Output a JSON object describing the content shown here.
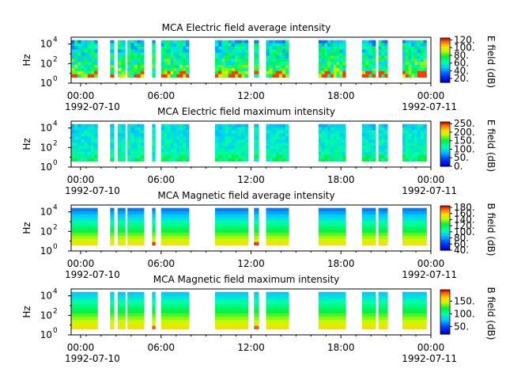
{
  "chart_data": [
    {
      "type": "heatmap",
      "title": "MCA  Electric field average intensity",
      "ylabel": "Hz",
      "y_scale": "log",
      "y_tick_labels": [
        {
          "base": "10",
          "exp": "0"
        },
        {
          "base": "10",
          "exp": "2"
        },
        {
          "base": "10",
          "exp": "4"
        }
      ],
      "x_tick_labels": [
        "00:00",
        "06:00",
        "12:00",
        "18:00",
        "00:00"
      ],
      "x_date_labels": [
        "1992-07-10",
        "1992-07-11"
      ],
      "colorbar_label": "E field (dB)",
      "colorbar_ticks": [
        "20.",
        "40.",
        "60.",
        "80.",
        "100.",
        "120."
      ],
      "colorbar_range": [
        10,
        125
      ],
      "palette": "rainbow",
      "data_intervals_hours": [
        [
          0.0,
          1.75
        ],
        [
          2.6,
          2.85
        ],
        [
          3.1,
          3.6
        ],
        [
          3.75,
          4.85
        ],
        [
          5.4,
          5.6
        ],
        [
          6.0,
          7.85
        ],
        [
          9.6,
          11.8
        ],
        [
          12.2,
          12.5
        ],
        [
          13.0,
          14.5
        ],
        [
          16.5,
          18.3
        ],
        [
          19.4,
          20.3
        ],
        [
          20.5,
          21.1
        ],
        [
          22.1,
          23.7
        ]
      ],
      "intensity_level_dB": 65,
      "max_level_dB": 120
    },
    {
      "type": "heatmap",
      "title": "MCA  Electric field maximum intensity",
      "ylabel": "Hz",
      "y_scale": "log",
      "y_tick_labels": [
        {
          "base": "10",
          "exp": "0"
        },
        {
          "base": "10",
          "exp": "2"
        },
        {
          "base": "10",
          "exp": "4"
        }
      ],
      "x_tick_labels": [
        "00:00",
        "06:00",
        "12:00",
        "18:00",
        "00:00"
      ],
      "x_date_labels": [
        "1992-07-10",
        "1992-07-11"
      ],
      "colorbar_label": "E field (dB)",
      "colorbar_ticks": [
        "0.",
        "50.",
        "100.",
        "150.",
        "200.",
        "250."
      ],
      "colorbar_range": [
        0,
        260
      ],
      "palette": "rainbow",
      "data_intervals_hours": [
        [
          0.0,
          1.75
        ],
        [
          2.6,
          2.85
        ],
        [
          3.1,
          3.6
        ],
        [
          3.75,
          4.85
        ],
        [
          5.4,
          5.6
        ],
        [
          6.0,
          7.85
        ],
        [
          9.6,
          11.8
        ],
        [
          12.2,
          12.5
        ],
        [
          13.0,
          14.5
        ],
        [
          16.5,
          18.3
        ],
        [
          19.4,
          20.3
        ],
        [
          20.5,
          21.1
        ],
        [
          22.1,
          23.7
        ]
      ],
      "intensity_level_dB": 105,
      "max_level_dB": 150
    },
    {
      "type": "heatmap",
      "title": "MCA  Magnetic field average intensity",
      "ylabel": "Hz",
      "y_scale": "log",
      "y_tick_labels": [
        {
          "base": "10",
          "exp": "0"
        },
        {
          "base": "10",
          "exp": "2"
        },
        {
          "base": "10",
          "exp": "4"
        }
      ],
      "x_tick_labels": [
        "00:00",
        "06:00",
        "12:00",
        "18:00",
        "00:00"
      ],
      "x_date_labels": [
        "1992-07-10",
        "1992-07-11"
      ],
      "colorbar_label": "B field (dB)",
      "colorbar_ticks": [
        "40.",
        "60.",
        "80.",
        "100.",
        "120.",
        "140.",
        "160.",
        "180."
      ],
      "colorbar_range": [
        40,
        185
      ],
      "palette": "rainbow",
      "data_intervals_hours": [
        [
          0.0,
          1.75
        ],
        [
          2.6,
          2.85
        ],
        [
          3.1,
          3.6
        ],
        [
          3.75,
          4.85
        ],
        [
          5.4,
          5.6
        ],
        [
          6.0,
          7.85
        ],
        [
          9.6,
          11.8
        ],
        [
          12.2,
          12.5
        ],
        [
          13.0,
          14.5
        ],
        [
          16.5,
          18.3
        ],
        [
          19.4,
          20.3
        ],
        [
          20.5,
          21.1
        ],
        [
          22.1,
          23.7
        ]
      ],
      "intensity_level_dB": 110,
      "max_level_dB": 165
    },
    {
      "type": "heatmap",
      "title": "MCA  Magnetic field maximum intensity",
      "ylabel": "Hz",
      "y_scale": "log",
      "y_tick_labels": [
        {
          "base": "10",
          "exp": "0"
        },
        {
          "base": "10",
          "exp": "2"
        },
        {
          "base": "10",
          "exp": "4"
        }
      ],
      "x_tick_labels": [
        "00:00",
        "06:00",
        "12:00",
        "18:00",
        "00:00"
      ],
      "x_date_labels": [
        "1992-07-10",
        "1992-07-11"
      ],
      "colorbar_label": "B field (dB)",
      "colorbar_ticks": [
        "50.",
        "100.",
        "150."
      ],
      "colorbar_range": [
        20,
        195
      ],
      "palette": "rainbow",
      "data_intervals_hours": [
        [
          0.0,
          1.75
        ],
        [
          2.6,
          2.85
        ],
        [
          3.1,
          3.6
        ],
        [
          3.75,
          4.85
        ],
        [
          5.4,
          5.6
        ],
        [
          6.0,
          7.85
        ],
        [
          9.6,
          11.8
        ],
        [
          12.2,
          12.5
        ],
        [
          13.0,
          14.5
        ],
        [
          16.5,
          18.3
        ],
        [
          19.4,
          20.3
        ],
        [
          20.5,
          21.1
        ],
        [
          22.1,
          23.7
        ]
      ],
      "intensity_level_dB": 115,
      "max_level_dB": 170
    }
  ]
}
